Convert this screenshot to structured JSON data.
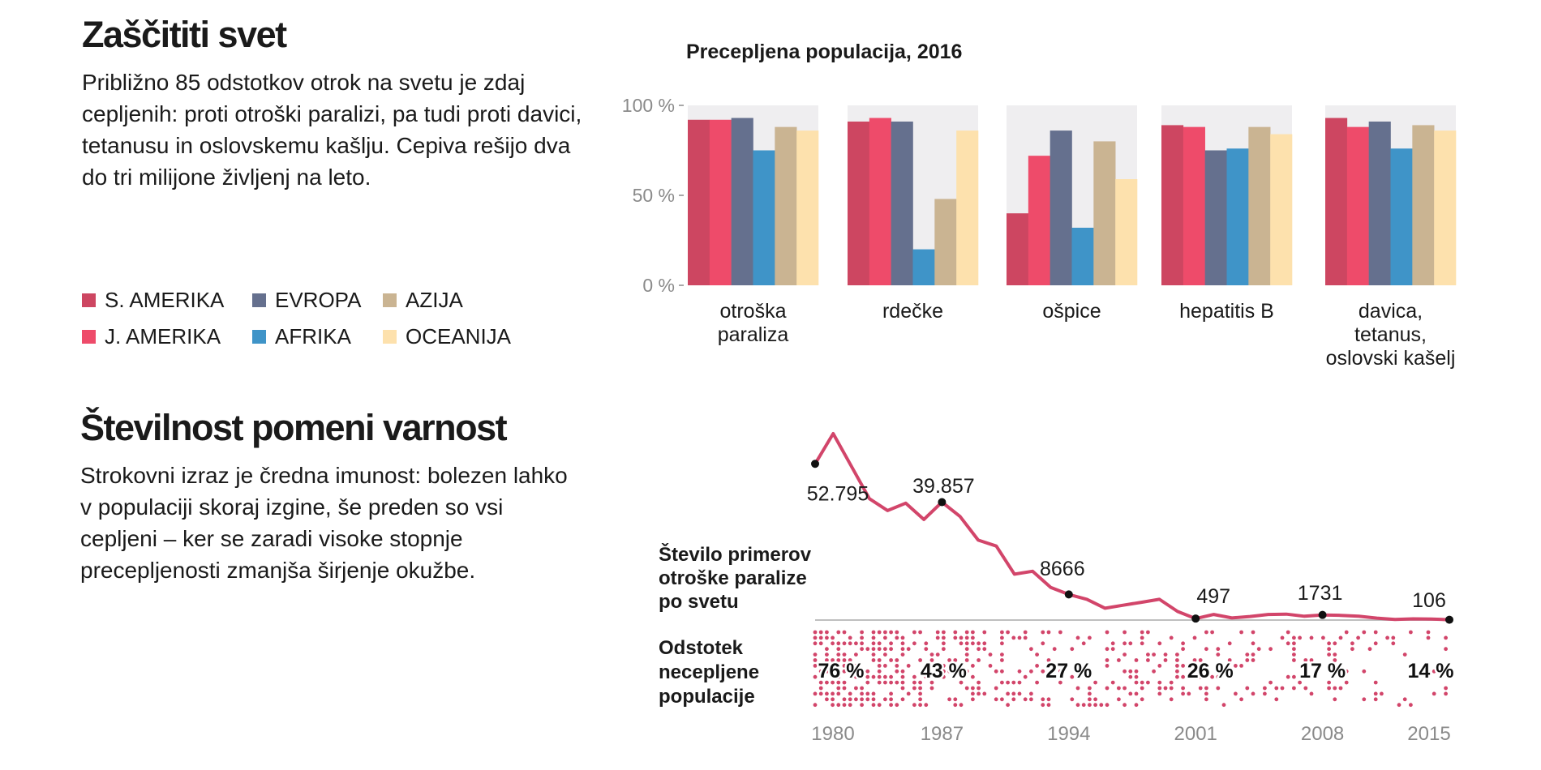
{
  "section1": {
    "title": "Zaščititi svet",
    "text": "Približno 85 odstotkov otrok na svetu je zdaj cepljenih: proti otroški paralizi, pa tudi proti davici, tetanusu in oslovskemu kašlju. Cepiva rešijo dva do tri milijone življenj na leto."
  },
  "section2": {
    "title": "Številnost pomeni varnost",
    "text": "Strokovni izraz je čredna imunost: bolezen lahko v populaciji skoraj izgine, še preden so vsi cepljeni – ker se zaradi visoke stopnje precepljenosti zmanjša širjenje okužbe."
  },
  "legend": [
    {
      "name": "S. AMERIKA",
      "color": "#cd4661"
    },
    {
      "name": "J. AMERIKA",
      "color": "#ee4b6a"
    },
    {
      "name": "EVROPA",
      "color": "#65708e"
    },
    {
      "name": "AFRIKA",
      "color": "#3f94c8"
    },
    {
      "name": "AZIJA",
      "color": "#cab492"
    },
    {
      "name": "OCEANIJA",
      "color": "#fde1ad"
    }
  ],
  "chart_data": [
    {
      "type": "bar",
      "title": "Precepljena populacija, 2016",
      "categories": [
        "otroška paraliza",
        "rdečke",
        "ošpice",
        "hepatitis B",
        "davica, tetanus, oslovski kašelj"
      ],
      "category_lines": [
        [
          "otroška",
          "paraliza"
        ],
        [
          "rdečke"
        ],
        [
          "ošpice"
        ],
        [
          "hepatitis B"
        ],
        [
          "davica,",
          "tetanus,",
          "oslovski kašelj"
        ]
      ],
      "yticks": [
        "0 %",
        "50 %",
        "100 %"
      ],
      "ylim": [
        0,
        100
      ],
      "series": [
        {
          "name": "S. AMERIKA",
          "color": "#cd4661",
          "values": [
            92,
            91,
            40,
            89,
            93
          ]
        },
        {
          "name": "J. AMERIKA",
          "color": "#ee4b6a",
          "values": [
            92,
            93,
            72,
            88,
            88
          ]
        },
        {
          "name": "EVROPA",
          "color": "#65708e",
          "values": [
            93,
            91,
            86,
            75,
            91
          ]
        },
        {
          "name": "AFRIKA",
          "color": "#3f94c8",
          "values": [
            75,
            20,
            32,
            76,
            76
          ]
        },
        {
          "name": "AZIJA",
          "color": "#cab492",
          "values": [
            88,
            48,
            80,
            88,
            89
          ]
        },
        {
          "name": "OCEANIJA",
          "color": "#fde1ad",
          "values": [
            86,
            86,
            59,
            84,
            86
          ]
        }
      ]
    },
    {
      "type": "line",
      "title": "Število primerov otroške paralize po svetu",
      "x": [
        1980,
        1981,
        1982,
        1983,
        1984,
        1985,
        1986,
        1987,
        1988,
        1989,
        1990,
        1991,
        1992,
        1993,
        1994,
        1995,
        1996,
        1997,
        1998,
        1999,
        2000,
        2001,
        2002,
        2003,
        2004,
        2005,
        2006,
        2007,
        2008,
        2009,
        2010,
        2011,
        2012,
        2013,
        2014,
        2015
      ],
      "values": [
        52795,
        63000,
        52000,
        41000,
        37000,
        39500,
        34000,
        39857,
        35000,
        27000,
        25000,
        15500,
        16500,
        11000,
        8666,
        7000,
        4000,
        5000,
        6000,
        7000,
        2900,
        497,
        1900,
        700,
        1200,
        1900,
        2000,
        1300,
        1731,
        1600,
        1300,
        650,
        223,
        400,
        360,
        106
      ],
      "labels": [
        {
          "x": 1980,
          "text": "52.795"
        },
        {
          "x": 1987,
          "text": "39.857"
        },
        {
          "x": 1994,
          "text": "8666"
        },
        {
          "x": 2001,
          "text": "497"
        },
        {
          "x": 2008,
          "text": "1731"
        },
        {
          "x": 2015,
          "text": "106"
        }
      ],
      "xticks": [
        "1980",
        "1987",
        "1994",
        "2001",
        "2008",
        "2015"
      ],
      "color": "#d2456a"
    },
    {
      "type": "scatter",
      "title": "Odstotek necepljene populacije",
      "x": [
        1980,
        1987,
        1994,
        2001,
        2008,
        2015
      ],
      "values": [
        76,
        43,
        27,
        26,
        17,
        14
      ],
      "labels": [
        "76 %",
        "43 %",
        "27 %",
        "26 %",
        "17 %",
        "14 %"
      ],
      "color": "#d2456a"
    }
  ]
}
